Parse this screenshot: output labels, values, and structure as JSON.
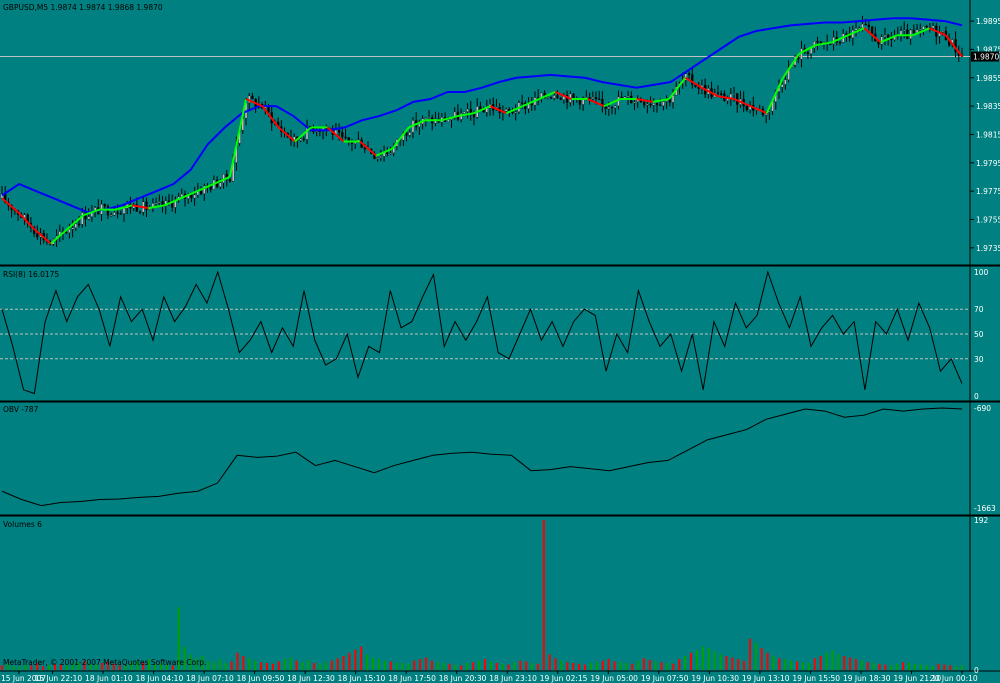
{
  "window": {
    "symbol_info": "GBPUSD,M5  1.9874 1.9874 1.9868 1.9870",
    "copyright": "MetaTrader, © 2001-2007 MetaQuotes Software Corp."
  },
  "colors": {
    "background": "#008080",
    "candles": "#000000",
    "ma_slow": "#0000ff",
    "ma_fast_up": "#00ff00",
    "ma_fast_down": "#ff0000",
    "separator": "#000000",
    "current_price_line": "#c0c0c0",
    "level_lines": "#c0c0c0",
    "volume_up": "#00a000",
    "volume_down": "#ff0000"
  },
  "chart_data": [
    {
      "type": "line",
      "panel": "price",
      "title": "GBPUSD,M5  1.9874 1.9874 1.9868 1.9870",
      "ylim": [
        1.9725,
        1.99
      ],
      "y_ticks": [
        "1.9895",
        "1.9875",
        "1.9855",
        "1.9835",
        "1.9815",
        "1.9795",
        "1.9775",
        "1.9755",
        "1.9735"
      ],
      "current_price": "1.9870",
      "series": [
        {
          "values": [
            1.977,
            1.976,
            1.9748,
            1.9738,
            1.9748,
            1.9758,
            1.9762,
            1.9762,
            1.9765,
            1.9763,
            1.9765,
            1.977,
            1.9775,
            1.978,
            1.9785,
            1.984,
            1.9835,
            1.982,
            1.981,
            1.982,
            1.982,
            1.981,
            1.981,
            1.98,
            1.9805,
            1.982,
            1.9825,
            1.9825,
            1.9828,
            1.983,
            1.9835,
            1.983,
            1.9835,
            1.984,
            1.9845,
            1.984,
            1.984,
            1.9835,
            1.984,
            1.984,
            1.9838,
            1.984,
            1.9855,
            1.9848,
            1.9842,
            1.984,
            1.9835,
            1.983,
            1.9855,
            1.9872,
            1.9878,
            1.988,
            1.9885,
            1.989,
            1.988,
            1.9885,
            1.9885,
            1.989,
            1.9885,
            1.987
          ]
        },
        {
          "values": [
            1.9772,
            1.978,
            1.9775,
            1.977,
            1.9765,
            1.976,
            1.9762,
            1.9765,
            1.977,
            1.9775,
            1.978,
            1.979,
            1.9808,
            1.982,
            1.983,
            1.9835,
            1.9835,
            1.9828,
            1.9818,
            1.9818,
            1.982,
            1.9825,
            1.9828,
            1.9832,
            1.9838,
            1.984,
            1.9845,
            1.9845,
            1.9848,
            1.9852,
            1.9855,
            1.9856,
            1.9857,
            1.9856,
            1.9855,
            1.9852,
            1.985,
            1.9848,
            1.985,
            1.9852,
            1.986,
            1.9868,
            1.9876,
            1.9884,
            1.9888,
            1.989,
            1.9892,
            1.9893,
            1.9894,
            1.9894,
            1.9895,
            1.9896,
            1.9897,
            1.9897,
            1.9896,
            1.9895,
            1.9892
          ]
        }
      ]
    },
    {
      "type": "line",
      "panel": "rsi",
      "title": "RSI(8) 16.0175",
      "ylim": [
        0,
        100
      ],
      "y_ticks": [
        "100",
        "70",
        "50",
        "30",
        "0"
      ],
      "levels": [
        70,
        50,
        30
      ],
      "series": [
        {
          "values": [
            70,
            40,
            5,
            2,
            60,
            85,
            60,
            80,
            90,
            70,
            40,
            80,
            60,
            70,
            45,
            80,
            60,
            72,
            90,
            75,
            100,
            70,
            35,
            45,
            60,
            35,
            55,
            40,
            85,
            45,
            25,
            30,
            50,
            15,
            40,
            35,
            85,
            55,
            60,
            80,
            98,
            40,
            60,
            45,
            60,
            80,
            35,
            30,
            50,
            70,
            45,
            60,
            40,
            60,
            70,
            65,
            20,
            50,
            35,
            85,
            60,
            40,
            50,
            20,
            50,
            5,
            60,
            40,
            75,
            55,
            65,
            100,
            75,
            55,
            80,
            40,
            55,
            65,
            50,
            60,
            5,
            60,
            50,
            70,
            45,
            75,
            55,
            20,
            30,
            10
          ]
        }
      ]
    },
    {
      "type": "line",
      "panel": "obv",
      "title": "OBV -787",
      "y_ticks": [
        "-690",
        "-1663"
      ],
      "series": [
        {
          "values": [
            -1500,
            -1580,
            -1640,
            -1610,
            -1600,
            -1580,
            -1575,
            -1560,
            -1550,
            -1520,
            -1500,
            -1420,
            -1150,
            -1170,
            -1160,
            -1120,
            -1250,
            -1200,
            -1260,
            -1320,
            -1250,
            -1200,
            -1150,
            -1130,
            -1120,
            -1140,
            -1150,
            -1300,
            -1290,
            -1260,
            -1280,
            -1300,
            -1260,
            -1220,
            -1200,
            -1100,
            -1000,
            -950,
            -900,
            -800,
            -750,
            -700,
            -720,
            -780,
            -760,
            -700,
            -720,
            -700,
            -690,
            -700
          ]
        }
      ]
    },
    {
      "type": "bar",
      "panel": "volumes",
      "title": "Volumes 6",
      "y_ticks": [
        "192",
        "0"
      ],
      "series": [
        {
          "values": [
            6,
            8,
            5,
            4,
            7,
            6,
            9,
            5,
            6,
            8,
            7,
            6,
            9,
            10,
            12,
            8,
            7,
            9,
            11,
            8,
            6,
            7,
            9,
            12,
            10,
            14,
            8,
            9,
            7,
            6,
            80,
            30,
            20,
            15,
            18,
            12,
            10,
            14,
            9,
            11,
            22,
            18,
            15,
            12,
            10,
            9,
            8,
            11,
            14,
            16,
            12,
            10,
            13,
            9,
            8,
            10,
            12,
            15,
            18,
            22,
            26,
            30,
            20,
            16,
            14,
            12,
            11,
            10,
            9,
            8,
            12,
            14,
            16,
            12,
            10,
            9,
            8,
            7,
            6,
            9,
            10,
            12,
            14,
            11,
            9,
            8,
            7,
            10,
            12,
            11,
            9,
            8,
            192,
            20,
            15,
            12,
            10,
            9,
            8,
            7,
            9,
            10,
            12,
            14,
            11,
            10,
            9,
            8,
            12,
            15,
            13,
            11,
            10,
            9,
            8,
            14,
            18,
            22,
            25,
            30,
            28,
            24,
            20,
            18,
            16,
            14,
            12,
            40,
            35,
            28,
            22,
            18,
            15,
            14,
            12,
            11,
            10,
            9,
            15,
            18,
            22,
            25,
            20,
            18,
            16,
            14,
            12,
            10,
            9,
            8,
            7,
            6,
            8,
            10,
            9,
            8,
            7,
            6,
            5,
            8,
            7,
            6,
            5,
            6
          ]
        }
      ]
    }
  ],
  "time_axis": [
    "15 Jun 2007",
    "15 Jun 22:10",
    "18 Jun 01:10",
    "18 Jun 04:10",
    "18 Jun 07:10",
    "18 Jun 09:50",
    "18 Jun 12:30",
    "18 Jun 15:10",
    "18 Jun 17:50",
    "18 Jun 20:30",
    "18 Jun 23:10",
    "19 Jun 02:15",
    "19 Jun 05:00",
    "19 Jun 07:50",
    "19 Jun 10:30",
    "19 Jun 13:10",
    "19 Jun 15:50",
    "19 Jun 18:30",
    "19 Jun 21:10",
    "20 Jun 00:10"
  ]
}
